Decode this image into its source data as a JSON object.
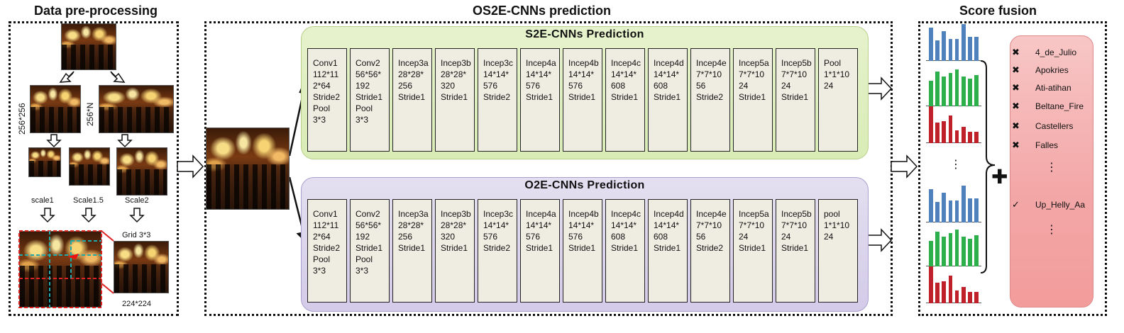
{
  "titles": {
    "preprocessing": "Data pre-processing",
    "prediction": "OS2E-CNNs prediction",
    "fusion": "Score fusion"
  },
  "preprocessing": {
    "size_left": "256*256",
    "size_right": "256*N",
    "scales": [
      "scale1",
      "Scale1.5",
      "Scale2"
    ],
    "grid_label": "Grid 3*3",
    "crop_size": "224*224"
  },
  "s2e": {
    "title": "S2E-CNNs  Prediction",
    "layers": [
      "Conv1\n112*11\n2*64\nStride2\nPool\n3*3",
      "Conv2\n56*56*\n192\nStride1\nPool\n3*3",
      "Incep3a\n28*28*\n256\nStride1",
      "Incep3b\n28*28*\n320\nStride1",
      "Incep3c\n14*14*\n576\nStride2",
      "Incep4a\n14*14*\n576\nStride1",
      "Incep4b\n14*14*\n576\nStride1",
      "Incep4c\n14*14*\n608\nStride1",
      "Incep4d\n14*14*\n608\nStride1",
      "Incep4e\n7*7*10\n56\nStride2",
      "Incep5a\n7*7*10\n24\nStride1",
      "Incep5b\n7*7*10\n24\nStride1",
      "Pool\n1*1*10\n24"
    ]
  },
  "o2e": {
    "title": "O2E-CNNs  Prediction",
    "layers": [
      "Conv1\n112*11\n2*64\nStride2\nPool\n3*3",
      "Conv2\n56*56*\n192\nStride1\nPool\n3*3",
      "Incep3a\n28*28*\n256\nStride1",
      "Incep3b\n28*28*\n320\nStride1",
      "Incep3c\n14*14*\n576\nStride2",
      "Incep4a\n14*14*\n576\nStride1",
      "Incep4b\n14*14*\n576\nStride1",
      "Incep4c\n14*14*\n608\nStride1",
      "Incep4d\n14*14*\n608\nStride1",
      "Incep4e\n7*7*10\n56\nStride2",
      "Incep5a\n7*7*10\n24\nStride1",
      "Incep5b\n7*7*10\n24\nStride1",
      "pool\n1*1*10\n24"
    ]
  },
  "fusion": {
    "colors": {
      "blue": "#4f81bd",
      "green": "#2db04b",
      "red": "#c0202a",
      "class_box": "#f4a9a9"
    },
    "bar_groups": [
      {
        "color": "blue",
        "values": [
          0.9,
          0.55,
          0.8,
          0.6,
          0.6,
          1.0,
          0.65,
          0.65
        ]
      },
      {
        "color": "green",
        "values": [
          0.7,
          0.95,
          0.8,
          0.9,
          1.0,
          0.8,
          0.75,
          0.85
        ]
      },
      {
        "color": "red",
        "values": [
          1.0,
          0.55,
          0.6,
          0.75,
          0.35,
          0.45,
          0.3,
          0.3
        ]
      },
      {
        "color": "blue",
        "values": [
          0.9,
          0.55,
          0.8,
          0.6,
          0.6,
          1.0,
          0.65,
          0.65
        ]
      },
      {
        "color": "green",
        "values": [
          0.7,
          0.95,
          0.8,
          0.9,
          1.0,
          0.8,
          0.75,
          0.85
        ]
      },
      {
        "color": "red",
        "values": [
          1.0,
          0.55,
          0.6,
          0.75,
          0.35,
          0.45,
          0.3,
          0.3
        ]
      }
    ],
    "vdots": "⋮",
    "plus": "✚",
    "classes": [
      {
        "mark": "✖",
        "name": "4_de_Julio"
      },
      {
        "mark": "✖",
        "name": "Apokries"
      },
      {
        "mark": "✖",
        "name": "Ati-atihan"
      },
      {
        "mark": "✖",
        "name": "Beltane_Fire"
      },
      {
        "mark": "✖",
        "name": "Castellers"
      },
      {
        "mark": "✖",
        "name": "Falles"
      },
      {
        "mark": "",
        "name": ""
      },
      {
        "mark": "✓",
        "name": "Up_Helly_Aa"
      }
    ],
    "class_dots": "⋮"
  }
}
